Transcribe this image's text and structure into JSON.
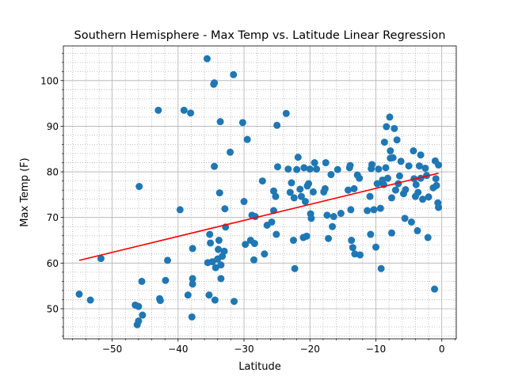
{
  "chart_data": {
    "type": "scatter",
    "title": "Southern Hemisphere - Max Temp vs. Latitude Linear Regression",
    "x_label": "Latitude",
    "y_label": "Max Temp (F)",
    "color": "#1f77b4",
    "grid": true,
    "minor_grid": true,
    "xlim": [
      -57.4,
      2.2
    ],
    "ylim": [
      43.4,
      107.6
    ],
    "xticks": [
      {
        "value": -50,
        "label": "−50"
      },
      {
        "value": -40,
        "label": "−40"
      },
      {
        "value": -30,
        "label": "−30"
      },
      {
        "value": -20,
        "label": "−20"
      },
      {
        "value": -10,
        "label": "−10"
      },
      0
    ],
    "yticks": [
      50,
      60,
      70,
      80,
      90,
      100
    ],
    "xminorticks": [
      -56,
      -54,
      -52,
      -48,
      -46,
      -44,
      -42,
      -38,
      -36,
      -34,
      -32,
      -28,
      -26,
      -24,
      -22,
      -18,
      -16,
      -14,
      -12,
      -8,
      -6,
      -4,
      -2,
      2
    ],
    "yminorticks": [
      44,
      46,
      48,
      52,
      54,
      56,
      58,
      62,
      64,
      66,
      68,
      72,
      74,
      76,
      78,
      82,
      84,
      86,
      88,
      92,
      94,
      96,
      98,
      102,
      104,
      106
    ],
    "regression": {
      "x": [
        -55,
        -0.5
      ],
      "y": [
        60.6,
        79.7
      ],
      "color": "#ff0000"
    },
    "x": [
      -55,
      -53.3,
      -51.7,
      -46.5,
      -46.2,
      -46,
      -46,
      -45.9,
      -45.5,
      -45.4,
      -43,
      -42.8,
      -42.7,
      -41.9,
      -41.6,
      -39.7,
      -39.1,
      -38.5,
      -38.1,
      -37.9,
      -37.8,
      -37.8,
      -37.8,
      -35.6,
      -35.5,
      -35.3,
      -35.2,
      -35.1,
      -34.8,
      -34.6,
      -34.5,
      -34.5,
      -34.4,
      -34.3,
      -34,
      -33.9,
      -33.8,
      -33.7,
      -33.6,
      -33.5,
      -33.5,
      -33.3,
      -33,
      -32.9,
      -32.8,
      -32.1,
      -31.6,
      -31.5,
      -30.2,
      -30,
      -29.8,
      -29.5,
      -29,
      -28.8,
      -28.5,
      -28.4,
      -28.3,
      -27.2,
      -26.9,
      -26.5,
      -25.8,
      -25.5,
      -25.5,
      -25.2,
      -25.1,
      -25,
      -24.9,
      -23.6,
      -23.3,
      -23,
      -22.8,
      -22.5,
      -22.4,
      -22.3,
      -22,
      -21.8,
      -21.5,
      -21.3,
      -21,
      -20.9,
      -20.7,
      -20.5,
      -20.4,
      -20.2,
      -20,
      -19.9,
      -19.8,
      -19.5,
      -19.3,
      -19,
      -17.9,
      -17.7,
      -17.6,
      -17.4,
      -17.2,
      -16.8,
      -16.6,
      -16.4,
      -15.8,
      -15.3,
      -14.2,
      -14,
      -13.9,
      -13.8,
      -13.7,
      -13.5,
      -13.3,
      -13.2,
      -12.8,
      -12.5,
      -12.4,
      -11.3,
      -10.9,
      -10.8,
      -10.7,
      -10.6,
      -10.3,
      -10,
      -9.8,
      -9.6,
      -9.3,
      -9.2,
      -9,
      -8.8,
      -8.7,
      -8.5,
      -8.4,
      -8.2,
      -7.9,
      -7.8,
      -7.8,
      -7.6,
      -7.6,
      -7.4,
      -7.2,
      -7,
      -6.8,
      -6.6,
      -6.4,
      -6.2,
      -5.8,
      -5.6,
      -5.5,
      -5,
      -4.6,
      -4.3,
      -4.2,
      -4,
      -3.9,
      -3.7,
      -3.6,
      -3.4,
      -3.2,
      -3.2,
      -2.9,
      -2.5,
      -2.3,
      -2.1,
      -2,
      -1.3,
      -1.1,
      -1,
      -0.9,
      -0.8,
      -0.6,
      -0.5,
      -0.5
    ],
    "values": [
      53.2,
      51.9,
      61,
      50.8,
      46.5,
      47.3,
      50.5,
      76.8,
      56,
      48.6,
      93.5,
      52.2,
      51.8,
      56.2,
      60.6,
      71.7,
      93.5,
      53,
      92.9,
      48.2,
      55.4,
      56.6,
      63.2,
      104.8,
      60.1,
      53,
      66.3,
      64.4,
      60.3,
      99.2,
      99.5,
      81.2,
      51.9,
      59,
      60.9,
      63,
      65,
      75.4,
      91,
      56.6,
      59.6,
      61.5,
      62.6,
      71.9,
      67.9,
      84.3,
      101.3,
      51.6,
      90.8,
      73.5,
      64.1,
      87.1,
      65,
      70.5,
      60.7,
      64.3,
      70.2,
      78,
      62,
      68.3,
      69,
      71.5,
      75.8,
      74.6,
      66.3,
      90.2,
      81.1,
      92.8,
      80.6,
      75.5,
      77.6,
      65,
      74.3,
      58.8,
      80.5,
      83.2,
      76.2,
      74.6,
      65.6,
      80.9,
      73.5,
      65.9,
      76.9,
      77.4,
      80.6,
      70.8,
      69.8,
      75.6,
      82,
      80.6,
      75.6,
      76.3,
      82,
      70.5,
      65.4,
      79.4,
      68,
      70.2,
      80.5,
      70.9,
      76,
      80.9,
      81.4,
      71.7,
      65,
      63.4,
      76.3,
      62,
      79.3,
      78.6,
      61.8,
      71.5,
      74.6,
      66.3,
      80.7,
      81.6,
      71.7,
      63.5,
      77.4,
      80.6,
      72,
      58.8,
      78.2,
      77.2,
      86.5,
      80.9,
      89.9,
      78.6,
      92,
      83,
      84.6,
      74.3,
      66.6,
      83.1,
      89.5,
      76,
      87,
      77.4,
      79.1,
      82.3,
      75.2,
      69.8,
      76.1,
      81.3,
      69,
      84.6,
      78.5,
      74.6,
      77.2,
      67.1,
      75.5,
      81.3,
      83.7,
      78.6,
      74,
      80.8,
      79.2,
      65.6,
      74.5,
      76.5,
      54.3,
      82.4,
      78.5,
      77,
      73.2,
      72.2,
      81.5
    ]
  }
}
